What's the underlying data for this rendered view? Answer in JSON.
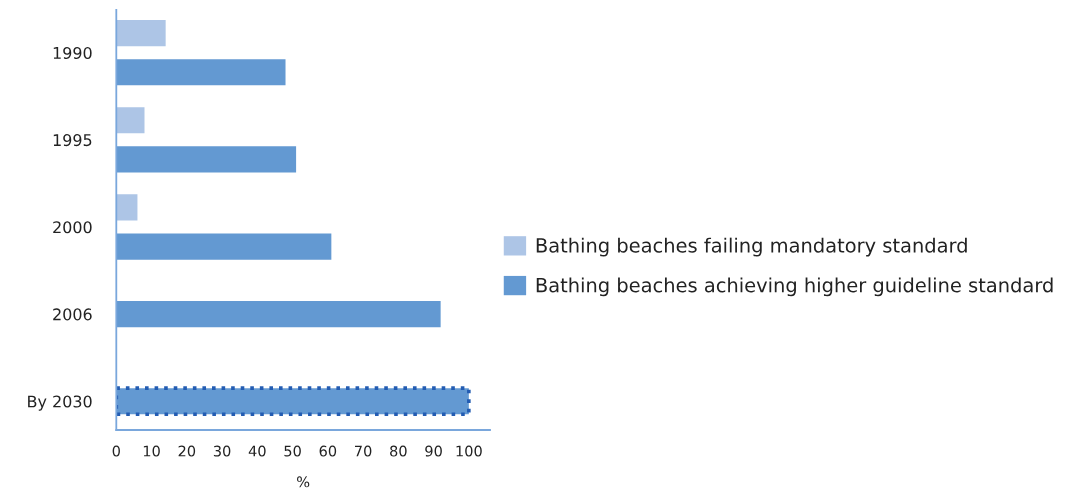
{
  "chart_data": {
    "type": "bar",
    "orientation": "horizontal",
    "xlabel": "%",
    "categories": [
      "1990",
      "1995",
      "2000",
      "2006",
      "By 2030"
    ],
    "series": [
      {
        "name": "Bathing beaches failing mandatory standard",
        "color": "#adc5e6",
        "values": [
          14,
          8,
          6,
          null,
          null
        ]
      },
      {
        "name": "Bathing beaches achieving higher guideline standard",
        "color": "#6399d2",
        "values": [
          48,
          51,
          61,
          92,
          null
        ]
      },
      {
        "color": "#6399d2",
        "values": [
          null,
          null,
          null,
          null,
          100
        ],
        "line_style": "dotted"
      }
    ],
    "xlim": [
      0,
      106
    ],
    "xticks": [
      0,
      10,
      20,
      30,
      40,
      50,
      60,
      70,
      80,
      90,
      100
    ],
    "grid": false,
    "legend": "right"
  }
}
